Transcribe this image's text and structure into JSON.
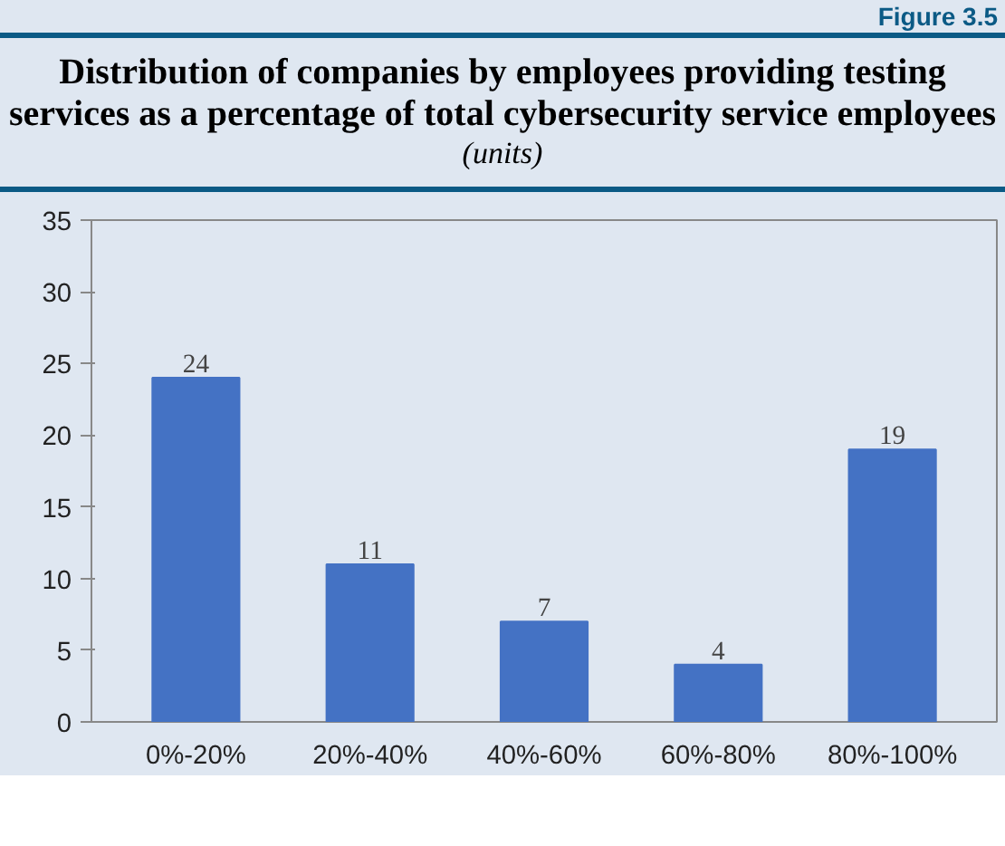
{
  "chart_data": {
    "type": "bar",
    "title": "Distribution of companies by employees providing testing services as a percentage of total cybersecurity service employees",
    "subtitle": "(units)",
    "annotations": [
      "Figure 3.5"
    ],
    "categories": [
      "0%-20%",
      "20%-40%",
      "40%-60%",
      "60%-80%",
      "80%-100%"
    ],
    "values": [
      24,
      11,
      7,
      4,
      19
    ],
    "color": "#4472c4",
    "ylim": [
      0,
      35
    ],
    "yticks": [
      0,
      5,
      10,
      15,
      20,
      25,
      30,
      35
    ],
    "grid": false,
    "data_labels": true
  }
}
